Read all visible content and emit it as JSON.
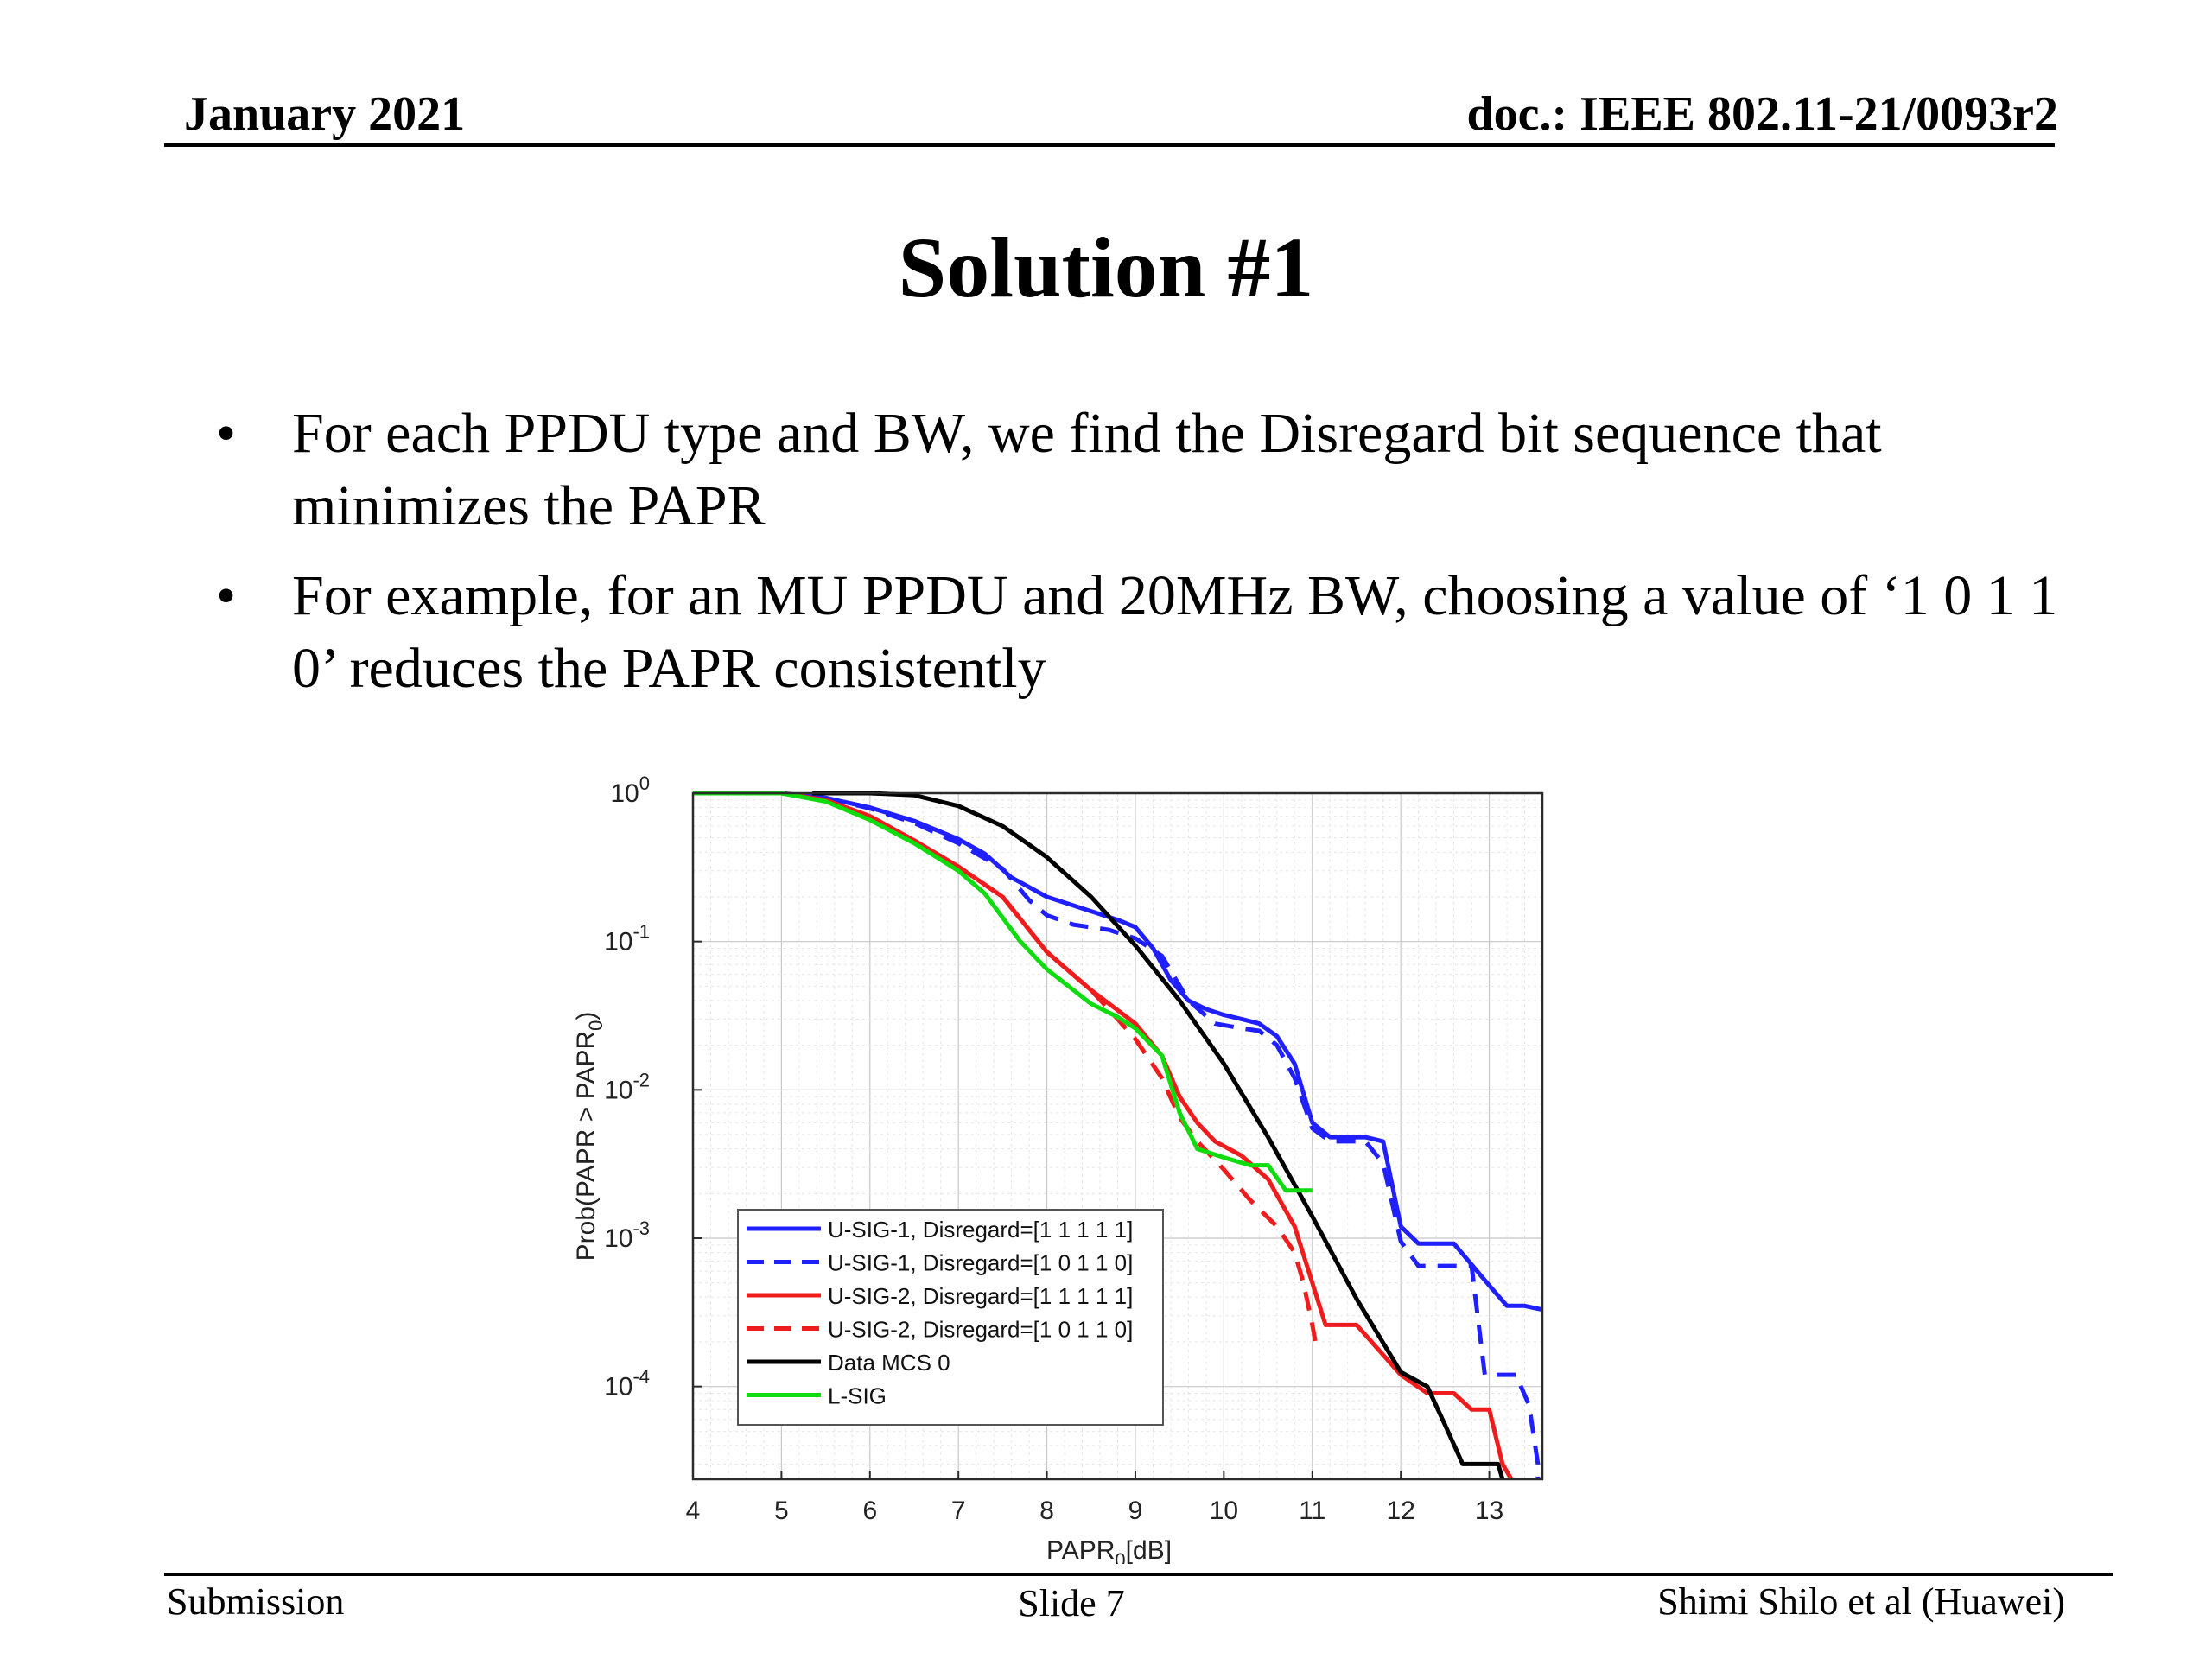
{
  "header": {
    "date": "January 2021",
    "doc": "doc.: IEEE 802.11-21/0093r2"
  },
  "slide_title": "Solution #1",
  "bullets": [
    {
      "mark": "•",
      "text": "For each PPDU type and BW, we find the Disregard bit sequence that minimizes the PAPR"
    },
    {
      "mark": "•",
      "text": "For example, for an MU PPDU and 20MHz BW, choosing a value of ‘1 0 1 1 0’ reduces the PAPR consistently"
    }
  ],
  "footer": {
    "left": "Submission",
    "center": "Slide 7",
    "right": "Shimi Shilo et al (Huawei)"
  },
  "chart_data": {
    "type": "line",
    "title": "",
    "xlabel": "PAPR",
    "xlabel_sub": "0",
    "xlabel_unit": "[dB]",
    "ylabel": "Prob(PAPR > PAPR",
    "ylabel_sub": "0",
    "ylabel_close": ")",
    "xlim": [
      4,
      13.6
    ],
    "ylim": [
      2.37e-05,
      1
    ],
    "yscale": "log",
    "grid": true,
    "xticks": [
      4,
      5,
      6,
      7,
      8,
      9,
      10,
      11,
      12,
      13
    ],
    "yticks": [
      {
        "value": 1,
        "base": "10",
        "exp": "0"
      },
      {
        "value": 0.1,
        "base": "10",
        "exp": "-1"
      },
      {
        "value": 0.01,
        "base": "10",
        "exp": "-2"
      },
      {
        "value": 0.001,
        "base": "10",
        "exp": "-3"
      },
      {
        "value": 0.0001,
        "base": "10",
        "exp": "-4"
      }
    ],
    "legend_position": "bottom-left",
    "series": [
      {
        "name": "U-SIG-1, Disregard=[1 1 1 1 1]",
        "color": "#1f1fff",
        "dash": "solid",
        "x": [
          4.1,
          5.0,
          5.5,
          6.0,
          6.5,
          7.0,
          7.3,
          7.6,
          8.0,
          8.5,
          8.8,
          9.0,
          9.2,
          9.4,
          9.6,
          9.8,
          10.0,
          10.2,
          10.4,
          10.6,
          10.8,
          11.0,
          11.2,
          11.4,
          11.6,
          11.8,
          12.0,
          12.2,
          12.4,
          12.6,
          13.0,
          13.2,
          13.4,
          13.6
        ],
        "y": [
          1,
          1,
          0.93,
          0.8,
          0.65,
          0.49,
          0.39,
          0.27,
          0.2,
          0.16,
          0.14,
          0.125,
          0.09,
          0.055,
          0.04,
          0.035,
          0.032,
          0.03,
          0.028,
          0.023,
          0.015,
          0.006,
          0.0048,
          0.0048,
          0.0048,
          0.0045,
          0.0012,
          0.00092,
          0.00092,
          0.00092,
          0.00048,
          0.00035,
          0.00035,
          0.00033
        ]
      },
      {
        "name": "U-SIG-1, Disregard=[1 0 1 1 0]",
        "color": "#1f1fff",
        "dash": "dashed",
        "x": [
          4.1,
          5.0,
          5.5,
          6.0,
          6.5,
          7.0,
          7.5,
          7.8,
          8.0,
          8.3,
          8.7,
          9.0,
          9.3,
          9.6,
          9.9,
          10.2,
          10.4,
          10.6,
          10.8,
          11.0,
          11.2,
          11.4,
          11.6,
          11.8,
          12.0,
          12.2,
          12.4,
          12.6,
          12.8,
          12.95,
          13.1,
          13.3,
          13.45,
          13.55,
          13.55
        ],
        "y": [
          1,
          1,
          0.93,
          0.79,
          0.63,
          0.46,
          0.31,
          0.19,
          0.15,
          0.13,
          0.12,
          0.105,
          0.08,
          0.04,
          0.028,
          0.026,
          0.025,
          0.02,
          0.012,
          0.0055,
          0.0045,
          0.0045,
          0.0045,
          0.0032,
          0.00095,
          0.00065,
          0.00065,
          0.00065,
          0.00065,
          0.00012,
          0.00012,
          0.00012,
          7.5e-05,
          3e-05,
          2.37e-05
        ]
      },
      {
        "name": "U-SIG-2, Disregard=[1 1 1 1 1]",
        "color": "#ee1c1c",
        "dash": "solid",
        "x": [
          4.0,
          5.0,
          5.5,
          6.0,
          6.5,
          7.0,
          7.5,
          8.0,
          8.5,
          9.0,
          9.3,
          9.5,
          9.7,
          9.9,
          10.2,
          10.5,
          10.8,
          11.0,
          11.15,
          11.5,
          12.0,
          12.3,
          12.6,
          12.8,
          13.0,
          13.15,
          13.25
        ],
        "y": [
          1,
          1,
          0.9,
          0.7,
          0.48,
          0.32,
          0.2,
          0.085,
          0.047,
          0.028,
          0.017,
          0.009,
          0.006,
          0.0045,
          0.0036,
          0.0025,
          0.0012,
          0.0005,
          0.00026,
          0.00026,
          0.00012,
          9e-05,
          9e-05,
          7e-05,
          7e-05,
          3e-05,
          2.37e-05
        ]
      },
      {
        "name": "U-SIG-2, Disregard=[1 0 1 1 0]",
        "color": "#ee1c1c",
        "dash": "dashed",
        "x": [
          4.0,
          5.0,
          5.5,
          6.0,
          6.5,
          7.0,
          7.5,
          8.0,
          8.5,
          8.8,
          9.0,
          9.3,
          9.5,
          9.7,
          10.0,
          10.3,
          10.6,
          10.8,
          10.9,
          11.0,
          11.05
        ],
        "y": [
          1,
          1,
          0.9,
          0.7,
          0.48,
          0.32,
          0.2,
          0.085,
          0.047,
          0.03,
          0.022,
          0.012,
          0.0065,
          0.0045,
          0.0029,
          0.0018,
          0.0012,
          0.0008,
          0.0005,
          0.00026,
          0.00018
        ]
      },
      {
        "name": "Data MCS 0",
        "color": "#000000",
        "dash": "solid",
        "x": [
          5.35,
          6.0,
          6.5,
          7.0,
          7.5,
          8.0,
          8.5,
          9.0,
          9.5,
          10.0,
          10.5,
          11.0,
          11.5,
          12.0,
          12.3,
          12.5,
          12.7,
          12.9,
          13.0,
          13.1,
          13.15
        ],
        "y": [
          1,
          1,
          0.97,
          0.82,
          0.6,
          0.37,
          0.2,
          0.094,
          0.04,
          0.015,
          0.0048,
          0.0014,
          0.00039,
          0.000125,
          0.0001,
          5.5e-05,
          3e-05,
          3e-05,
          3e-05,
          3e-05,
          2.37e-05
        ]
      },
      {
        "name": "L-SIG",
        "color": "#0fdc0f",
        "dash": "solid",
        "x": [
          4.0,
          5.0,
          5.5,
          6.0,
          6.5,
          7.0,
          7.3,
          7.7,
          8.0,
          8.5,
          8.8,
          9.0,
          9.3,
          9.5,
          9.7,
          10.0,
          10.3,
          10.5,
          10.7,
          11.0
        ],
        "y": [
          1,
          1,
          0.88,
          0.66,
          0.46,
          0.3,
          0.21,
          0.1,
          0.065,
          0.038,
          0.031,
          0.026,
          0.017,
          0.007,
          0.004,
          0.0035,
          0.0031,
          0.0031,
          0.0021,
          0.0021
        ]
      }
    ]
  }
}
